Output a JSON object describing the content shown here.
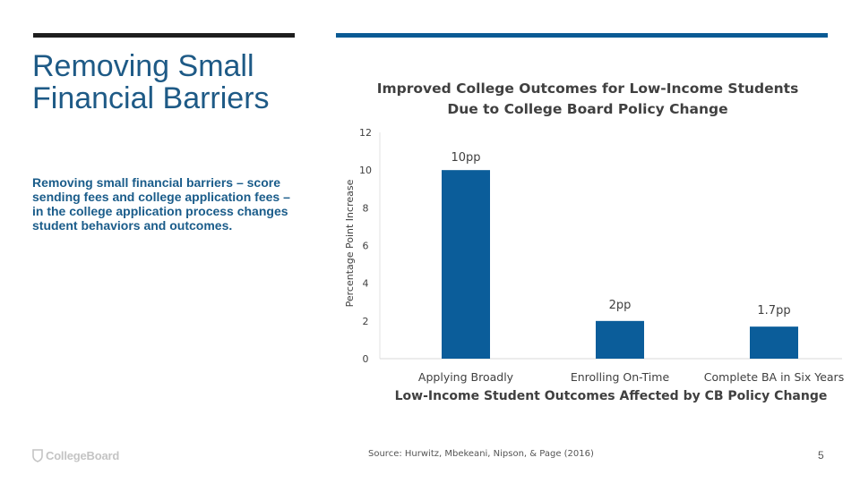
{
  "slide": {
    "title": "Removing Small Financial Barriers",
    "body": "Removing small financial barriers – score sending fees and college application fees – in the college application process changes student behaviors and outcomes.",
    "source": "Source: Hurwitz, Mbekeani, Nipson, & Page (2016)",
    "page_number": "5",
    "logo_text": "CollegeBoard",
    "logo_icon": "collegeboard-shield-icon"
  },
  "colors": {
    "accent_blue": "#0a5a94",
    "title_blue": "#1e5a86",
    "dark_bar": "#1e1e1e",
    "bar_fill": "#0b5d9a"
  },
  "chart_data": {
    "type": "bar",
    "title": "Improved College Outcomes for Low-Income Students Due to College Board Policy Change",
    "title_lines": [
      "Improved College Outcomes for Low-Income Students",
      "Due to College Board Policy Change"
    ],
    "categories": [
      "Applying Broadly",
      "Enrolling On-Time",
      "Complete BA in Six Years"
    ],
    "values": [
      10,
      2,
      1.7
    ],
    "data_labels": [
      "10pp",
      "2pp",
      "1.7pp"
    ],
    "xlabel": "Low-Income Student Outcomes Affected by CB Policy Change",
    "ylabel": "Percentage Point Increase",
    "ylim": [
      0,
      12
    ],
    "yticks": [
      0,
      2,
      4,
      6,
      8,
      10,
      12
    ],
    "grid": false,
    "legend": "none"
  }
}
